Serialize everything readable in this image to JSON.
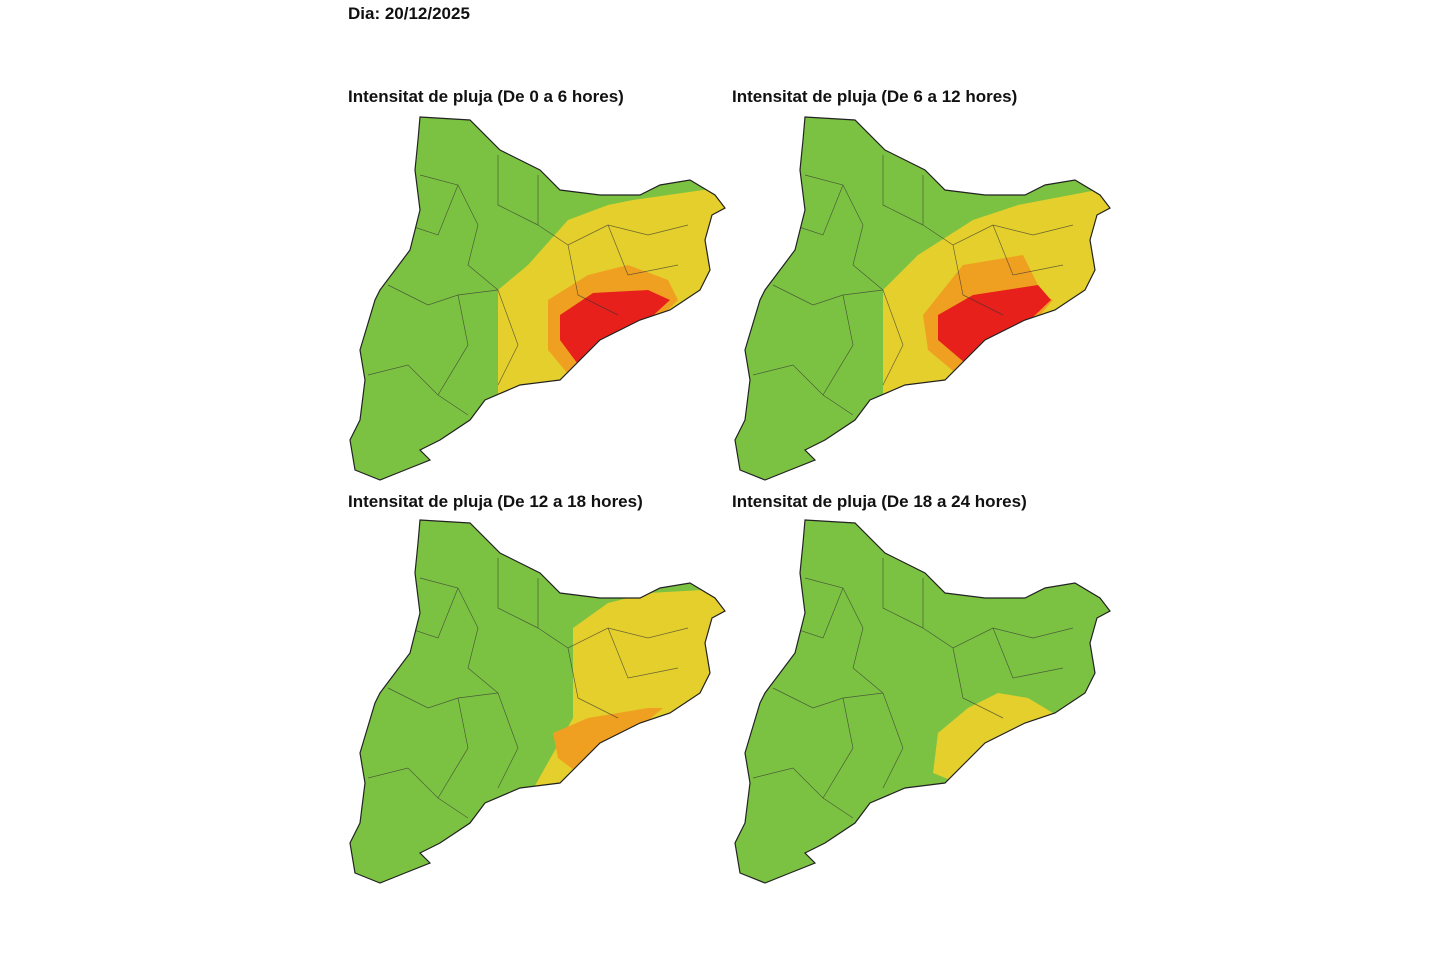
{
  "header": {
    "title": "Dia: 20/12/2025"
  },
  "panels": [
    {
      "title": "Intensitat de pluja (De 0 a 6 hores)"
    },
    {
      "title": "Intensitat de pluja (De 6 a 12 hores)"
    },
    {
      "title": "Intensitat de pluja (De 12 a 18 hores)"
    },
    {
      "title": "Intensitat de pluja (De 18 a 24 hores)"
    }
  ]
}
